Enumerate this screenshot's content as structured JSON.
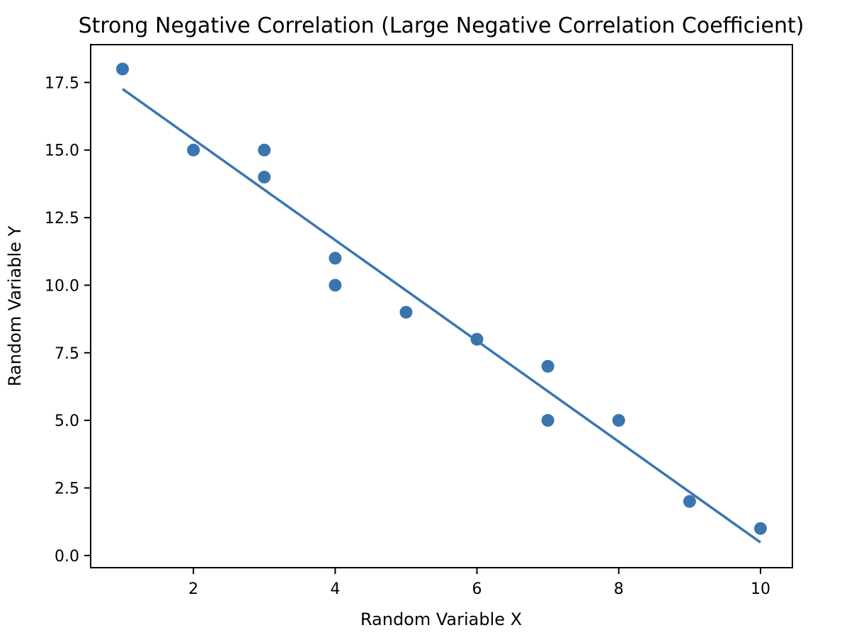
{
  "chart_data": {
    "type": "scatter",
    "title": "Strong Negative Correlation (Large Negative Correlation Coefficient)",
    "xlabel": "Random Variable X",
    "ylabel": "Random Variable Y",
    "xlim": [
      0.55,
      10.45
    ],
    "ylim": [
      -0.45,
      18.9
    ],
    "xticks": [
      2,
      4,
      6,
      8,
      10
    ],
    "xtick_labels": [
      "2",
      "4",
      "6",
      "8",
      "10"
    ],
    "yticks": [
      0,
      2.5,
      5,
      7.5,
      10,
      12.5,
      15,
      17.5
    ],
    "ytick_labels": [
      "0.0",
      "2.5",
      "5.0",
      "7.5",
      "10.0",
      "12.5",
      "15.0",
      "17.5"
    ],
    "grid": false,
    "color": "#3a75b0",
    "series": [
      {
        "name": "data",
        "type": "scatter",
        "x": [
          1,
          2,
          3,
          3,
          4,
          4,
          5,
          6,
          7,
          7,
          8,
          9,
          10
        ],
        "y": [
          18,
          15,
          15,
          14,
          11,
          10,
          9,
          8,
          7,
          5,
          5,
          2,
          1
        ]
      },
      {
        "name": "fit",
        "type": "line",
        "fit": "linear regression"
      }
    ]
  }
}
